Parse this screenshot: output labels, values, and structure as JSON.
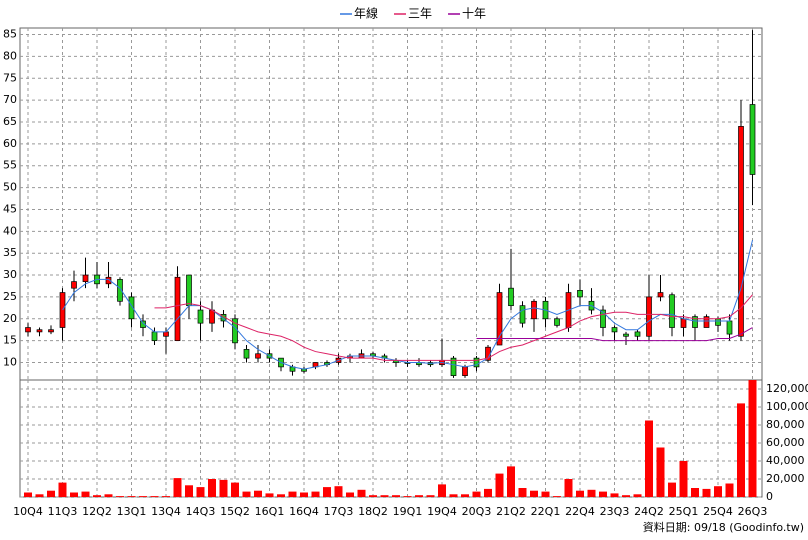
{
  "chart_data": {
    "type": "candlestick",
    "legend": "top",
    "grid": true,
    "categories": [
      "10Q4",
      null,
      null,
      "11Q3",
      null,
      null,
      "12Q2",
      null,
      null,
      "13Q1",
      null,
      null,
      "13Q4",
      null,
      null,
      "14Q3",
      null,
      null,
      "15Q2",
      null,
      null,
      "16Q1",
      null,
      null,
      "16Q4",
      null,
      null,
      "17Q3",
      null,
      null,
      "18Q2",
      null,
      null,
      "19Q1",
      null,
      null,
      "19Q4",
      null,
      null,
      "20Q3",
      null,
      null,
      "21Q2",
      null,
      null,
      "22Q1",
      null,
      null,
      "22Q4",
      null,
      null,
      "23Q3",
      null,
      null,
      "24Q2",
      null,
      null,
      "25Q1",
      null,
      null,
      "25Q4",
      null,
      null,
      "26Q3"
    ],
    "open": [
      17,
      17,
      17,
      18,
      27,
      28.5,
      30,
      28,
      29,
      25,
      19.5,
      17,
      16,
      15,
      30,
      22,
      19,
      21,
      20,
      13,
      11,
      12,
      11,
      9,
      8.5,
      9,
      10,
      10,
      11,
      11,
      12,
      11.5,
      10.5,
      10,
      10,
      10,
      9.5,
      11,
      7,
      11,
      10.5,
      14,
      27,
      23,
      20,
      24,
      20,
      18,
      26.5,
      24,
      22,
      18,
      16.5,
      17,
      16,
      25,
      25.5,
      18,
      20.5,
      18,
      20,
      19.5,
      16,
      69
    ],
    "high": [
      19,
      18,
      18.5,
      27,
      31,
      34,
      33,
      33,
      29.5,
      26,
      21,
      18,
      18,
      32,
      30,
      24,
      24,
      22,
      21,
      14,
      14,
      13,
      11,
      9.5,
      9,
      10,
      10.5,
      12,
      12,
      13,
      12.5,
      12,
      11,
      10.5,
      11,
      10.5,
      15.5,
      11.5,
      9.5,
      11.5,
      14,
      28,
      36,
      24,
      24.5,
      25,
      20.5,
      28,
      29,
      27,
      23,
      18.5,
      17,
      17.5,
      30,
      30,
      26,
      21,
      21,
      21,
      20.5,
      21,
      70,
      86
    ],
    "low": [
      16,
      16,
      16.5,
      15,
      24,
      27,
      27,
      27,
      23,
      18,
      16,
      14,
      12,
      15,
      20,
      15,
      17,
      18,
      13,
      10,
      10,
      10,
      8,
      7,
      7.5,
      8.5,
      9,
      9.5,
      10,
      11,
      11,
      10,
      9,
      9,
      9,
      9,
      9,
      6.5,
      6.5,
      8,
      10,
      14,
      22,
      18,
      17,
      18,
      18,
      17,
      23,
      21,
      16,
      15,
      14,
      15,
      15,
      24,
      16,
      16,
      15,
      18,
      17,
      15,
      15,
      46
    ],
    "close": [
      18,
      17.5,
      17.5,
      26,
      28.5,
      30,
      28,
      29.5,
      24,
      20,
      18,
      15,
      17,
      29.5,
      23,
      19,
      22,
      19.5,
      14.5,
      11,
      12,
      11,
      9,
      8,
      8,
      10,
      9.5,
      11,
      11.5,
      12,
      11.5,
      11,
      10,
      9.8,
      9.5,
      9.5,
      10.5,
      7,
      9,
      9,
      13.5,
      26,
      23,
      19,
      24,
      20,
      18.5,
      26,
      25,
      22,
      18,
      17,
      16,
      16,
      25,
      26,
      18,
      20,
      18,
      20.5,
      18.5,
      16.5,
      64,
      53
    ],
    "up_color": "#ff0000",
    "down_color": "#22cc22",
    "series": [
      {
        "name": "年線",
        "color": "#3377dd",
        "values": [
          null,
          null,
          null,
          22,
          26,
          28,
          29,
          29,
          27,
          23,
          19,
          17,
          17,
          20,
          23,
          23,
          22,
          20,
          18,
          15,
          13,
          11.5,
          10,
          9,
          8.5,
          9,
          9.5,
          10.5,
          11.5,
          11.5,
          11.5,
          11,
          10.5,
          10,
          10,
          9.8,
          10,
          9.5,
          9,
          9.5,
          11,
          16,
          20,
          22,
          22.5,
          22,
          21,
          22,
          23,
          23,
          21.5,
          19,
          17.5,
          17.5,
          19.5,
          21,
          21,
          20,
          19.5,
          19.5,
          19.5,
          19.5,
          27,
          38
        ]
      },
      {
        "name": "三年",
        "color": "#dd2266",
        "values": [
          null,
          null,
          null,
          null,
          null,
          null,
          null,
          null,
          null,
          null,
          null,
          22.5,
          22.5,
          23,
          23.5,
          23,
          22,
          20.5,
          19,
          18,
          17,
          16.5,
          16,
          15,
          13.5,
          12.5,
          12,
          11.5,
          11,
          11,
          11,
          10.5,
          10.5,
          10.5,
          10.5,
          10.5,
          10.5,
          10.5,
          10.5,
          10.5,
          11,
          12.5,
          13.5,
          14,
          15,
          16,
          17,
          18,
          19.5,
          20.5,
          21,
          21.5,
          21.5,
          21,
          21,
          21,
          20.5,
          20.5,
          20,
          20,
          20,
          20.5,
          22.5,
          25.5
        ]
      },
      {
        "name": "十年",
        "color": "#990099",
        "values": [
          null,
          null,
          null,
          null,
          null,
          null,
          null,
          null,
          null,
          null,
          null,
          null,
          null,
          null,
          null,
          null,
          null,
          null,
          null,
          null,
          null,
          null,
          null,
          null,
          null,
          null,
          null,
          null,
          null,
          null,
          null,
          null,
          null,
          null,
          null,
          null,
          null,
          null,
          null,
          15.5,
          15.5,
          15.5,
          15.5,
          15.5,
          15.5,
          15.5,
          15.5,
          15.5,
          15.5,
          15.5,
          15,
          15,
          15,
          15,
          15,
          15,
          15,
          15,
          15,
          15,
          15.5,
          15.5,
          16.5,
          18
        ]
      }
    ],
    "ylim": [
      6,
      86.5
    ],
    "yticks": [
      10,
      15,
      20,
      25,
      30,
      35,
      40,
      45,
      50,
      55,
      60,
      65,
      70,
      75,
      80,
      85
    ],
    "volume": {
      "color": "#ff0000",
      "values": [
        5000,
        3000,
        7000,
        16000,
        5000,
        6000,
        2000,
        3000,
        1000,
        1000,
        1000,
        1000,
        1000,
        21000,
        13000,
        11000,
        20000,
        19000,
        16000,
        6000,
        7000,
        4000,
        3000,
        6000,
        5000,
        6000,
        11000,
        12000,
        5000,
        8000,
        2000,
        2000,
        2000,
        1000,
        2000,
        2000,
        14000,
        3000,
        3000,
        6000,
        9000,
        26000,
        34000,
        10000,
        7000,
        6000,
        1000,
        20000,
        7000,
        8000,
        6000,
        4000,
        2000,
        3000,
        85000,
        55000,
        16000,
        40000,
        10000,
        9000,
        12000,
        15000,
        104000,
        130000
      ],
      "ylim": [
        0,
        130000
      ],
      "yticks": [
        0,
        {
          "value": 20000,
          "label": "20,000"
        },
        {
          "value": 40000,
          "label": "40,000"
        },
        {
          "value": 60000,
          "label": "60,000"
        },
        {
          "value": 80000,
          "label": "80,000"
        },
        {
          "value": 100000,
          "label": "100,000"
        },
        {
          "value": 120000,
          "label": "120,000"
        }
      ]
    },
    "footnote": "資料日期: 09/18 (Goodinfo.tw)"
  }
}
